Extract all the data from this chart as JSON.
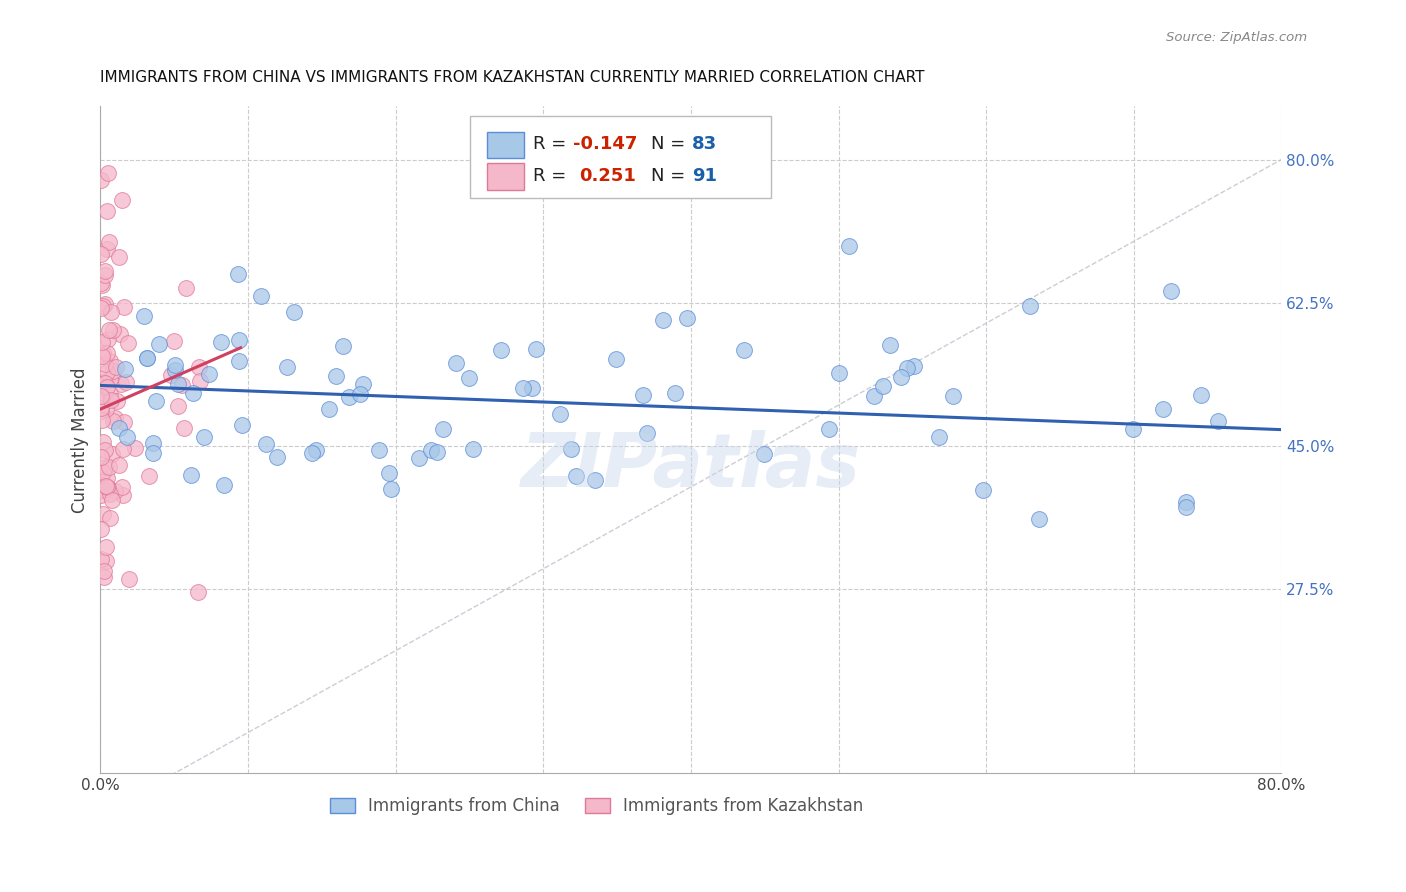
{
  "title": "IMMIGRANTS FROM CHINA VS IMMIGRANTS FROM KAZAKHSTAN CURRENTLY MARRIED CORRELATION CHART",
  "source": "Source: ZipAtlas.com",
  "ylabel": "Currently Married",
  "xlim": [
    0.0,
    0.8
  ],
  "ylim": [
    0.05,
    0.865
  ],
  "legend_r_china": "-0.147",
  "legend_n_china": "83",
  "legend_r_kaz": "0.251",
  "legend_n_kaz": "91",
  "color_china_fill": "#a8c8e8",
  "color_china_edge": "#5b8dd9",
  "color_kaz_fill": "#f5b8cb",
  "color_kaz_edge": "#e07898",
  "color_china_line": "#3060b0",
  "color_kaz_line": "#d04060",
  "color_diag": "#c0c0cc",
  "color_right_labels": "#4472c4",
  "watermark": "ZIPatlas",
  "y_ticks": [
    0.275,
    0.45,
    0.625,
    0.8
  ],
  "y_tick_labels": [
    "27.5%",
    "45.0%",
    "62.5%",
    "80.0%"
  ],
  "x_ticks": [
    0.0,
    0.1,
    0.2,
    0.3,
    0.4,
    0.5,
    0.6,
    0.7,
    0.8
  ],
  "china_line_x": [
    0.0,
    0.8
  ],
  "china_line_y": [
    0.524,
    0.47
  ],
  "kaz_line_x": [
    0.0,
    0.095
  ],
  "kaz_line_y": [
    0.495,
    0.57
  ]
}
